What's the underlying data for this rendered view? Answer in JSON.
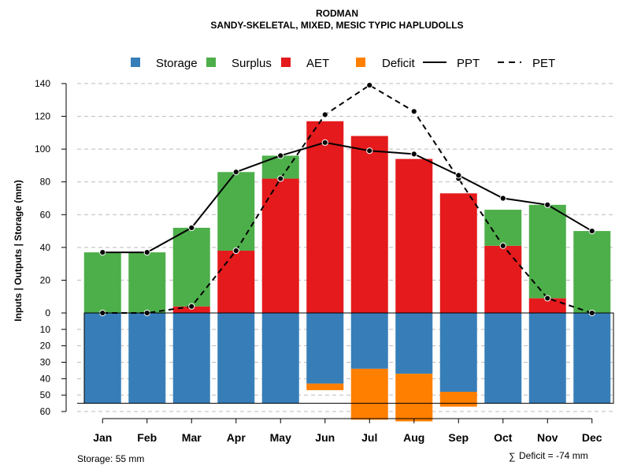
{
  "chart_data": {
    "type": "bar",
    "title": "RODMAN",
    "subtitle": "SANDY-SKELETAL, MIXED, MESIC TYPIC HAPLUDOLLS",
    "ylabel": "Inputs | Outputs | Storage     (mm)",
    "ylim_top": [
      0,
      140
    ],
    "ylim_bottom": [
      0,
      60
    ],
    "yticks_top": [
      0,
      20,
      40,
      60,
      80,
      100,
      120,
      140
    ],
    "yticks_bottom": [
      10,
      20,
      30,
      40,
      50,
      60
    ],
    "categories": [
      "Jan",
      "Feb",
      "Mar",
      "Apr",
      "May",
      "Jun",
      "Jul",
      "Aug",
      "Sep",
      "Oct",
      "Nov",
      "Dec"
    ],
    "legend": [
      {
        "key": "storage",
        "label": "Storage",
        "kind": "box"
      },
      {
        "key": "surplus",
        "label": "Surplus",
        "kind": "box"
      },
      {
        "key": "aet",
        "label": "AET",
        "kind": "box"
      },
      {
        "key": "deficit",
        "label": "Deficit",
        "kind": "box"
      },
      {
        "key": "ppt",
        "label": "PPT",
        "kind": "solid"
      },
      {
        "key": "pet",
        "label": "PET",
        "kind": "dashed"
      }
    ],
    "series": [
      {
        "name": "AET",
        "values": [
          0,
          0,
          4,
          38,
          82,
          117,
          108,
          94,
          73,
          41,
          9,
          0
        ]
      },
      {
        "name": "Surplus",
        "values": [
          37,
          37,
          48,
          48,
          14,
          0,
          0,
          0,
          0,
          22,
          57,
          50
        ]
      },
      {
        "name": "Storage",
        "values": [
          55,
          55,
          55,
          55,
          55,
          43,
          34,
          37,
          48,
          55,
          55,
          55
        ]
      },
      {
        "name": "Deficit",
        "values": [
          0,
          0,
          0,
          0,
          0,
          4,
          31,
          29,
          9,
          0,
          0,
          0
        ]
      },
      {
        "name": "PPT",
        "values": [
          37,
          37,
          52,
          86,
          96,
          104,
          99,
          97,
          84,
          70,
          66,
          50
        ]
      },
      {
        "name": "PET",
        "values": [
          0,
          0,
          4,
          38,
          82,
          121,
          139,
          123,
          82,
          41,
          9,
          0
        ]
      }
    ],
    "storage_capacity": 55,
    "colors": {
      "storage": "#377EB8",
      "surplus": "#4DAF4A",
      "aet": "#E41A1C",
      "deficit": "#FF7F00",
      "line": "#000000",
      "grid": "#bbbbbb"
    },
    "footer_left": "Storage: 55 mm",
    "footer_right": "Deficit = -74 mm"
  }
}
